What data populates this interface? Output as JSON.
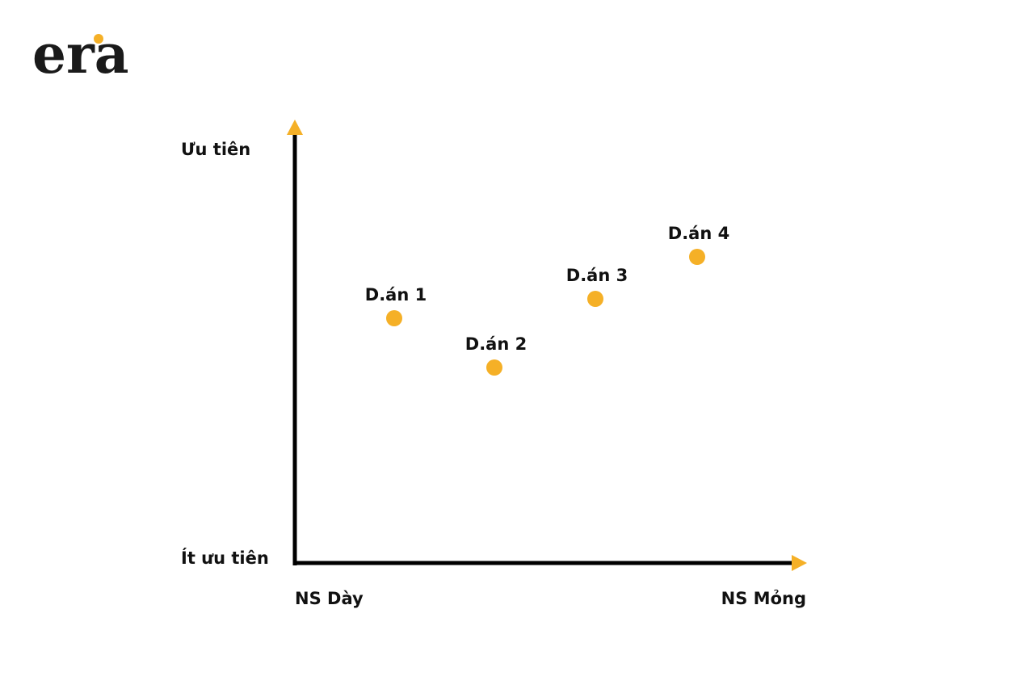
{
  "logo": "era",
  "y_axis": {
    "top_label": "Ưu tiên",
    "bottom_label": "Ít ưu tiên"
  },
  "x_axis": {
    "left_label": "NS Dày",
    "right_label": "NS Mỏng"
  },
  "nodes": [
    {
      "label": "D.án 1"
    },
    {
      "label": "D.án 2"
    },
    {
      "label": "D.án 3"
    },
    {
      "label": "D.án 4"
    }
  ]
}
